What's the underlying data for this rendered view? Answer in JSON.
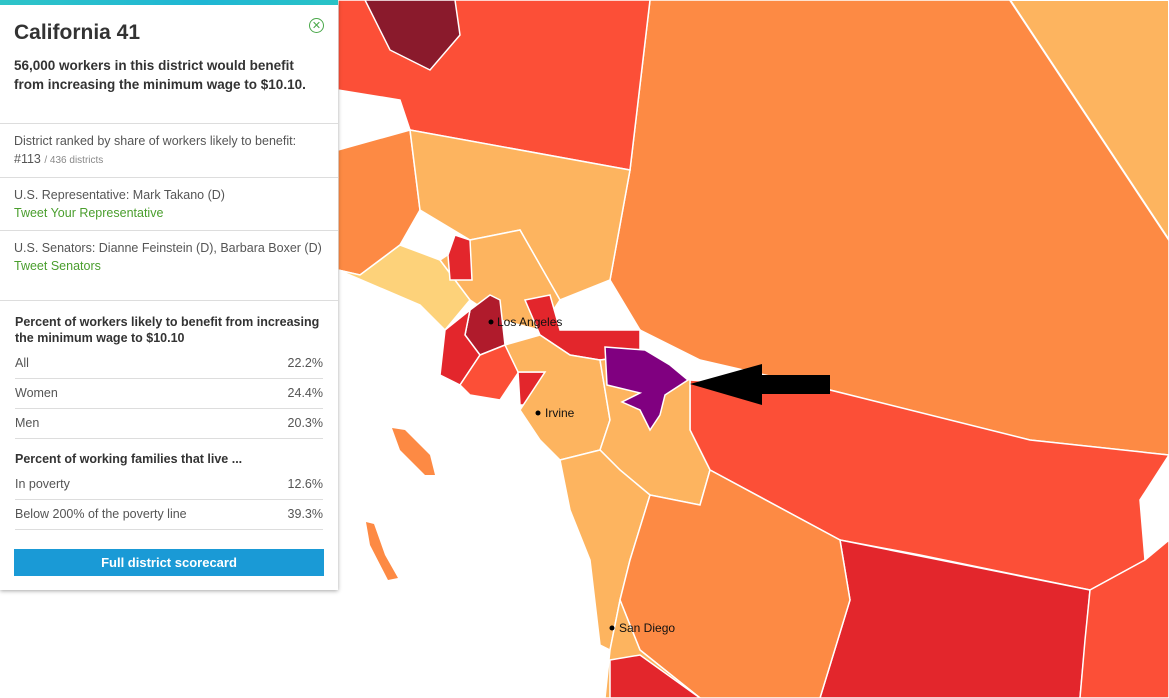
{
  "panel": {
    "title": "California 41",
    "headline": "56,000 workers in this district would benefit from increasing the minimum wage to $10.10.",
    "rank_label": "District ranked by share of workers likely to benefit:",
    "rank_value": "#113",
    "rank_of": "/ 436 districts",
    "rep_label": "U.S. Representative: Mark Takano (D)",
    "rep_link": "Tweet Your Representative",
    "senators_label": "U.S. Senators: Dianne Feinstein (D), Barbara Boxer (D)",
    "senators_link": "Tweet Senators",
    "workers_heading": "Percent of workers likely to benefit from increasing the minimum wage to $10.10",
    "workers_stats": [
      {
        "label": "All",
        "value": "22.2%"
      },
      {
        "label": "Women",
        "value": "24.4%"
      },
      {
        "label": "Men",
        "value": "20.3%"
      }
    ],
    "families_heading": "Percent of working families that live ...",
    "families_stats": [
      {
        "label": "In poverty",
        "value": "12.6%"
      },
      {
        "label": "Below 200% of the poverty line",
        "value": "39.3%"
      }
    ],
    "scorecard_button": "Full district scorecard",
    "close_icon": "close-circle-icon"
  },
  "map": {
    "cities": [
      "Los Angeles",
      "Irvine",
      "San Diego"
    ],
    "colors": {
      "ocean": "#ffffff",
      "lightest": "#fdd27a",
      "light": "#fdb45f",
      "medium": "#fd8a44",
      "high": "#fc4f37",
      "higher": "#e3262c",
      "highest": "#b01b2c",
      "darkest": "#8a1a2c",
      "selected": "#800080",
      "border": "#ffffff"
    },
    "annotation": "black-arrow-icon"
  }
}
